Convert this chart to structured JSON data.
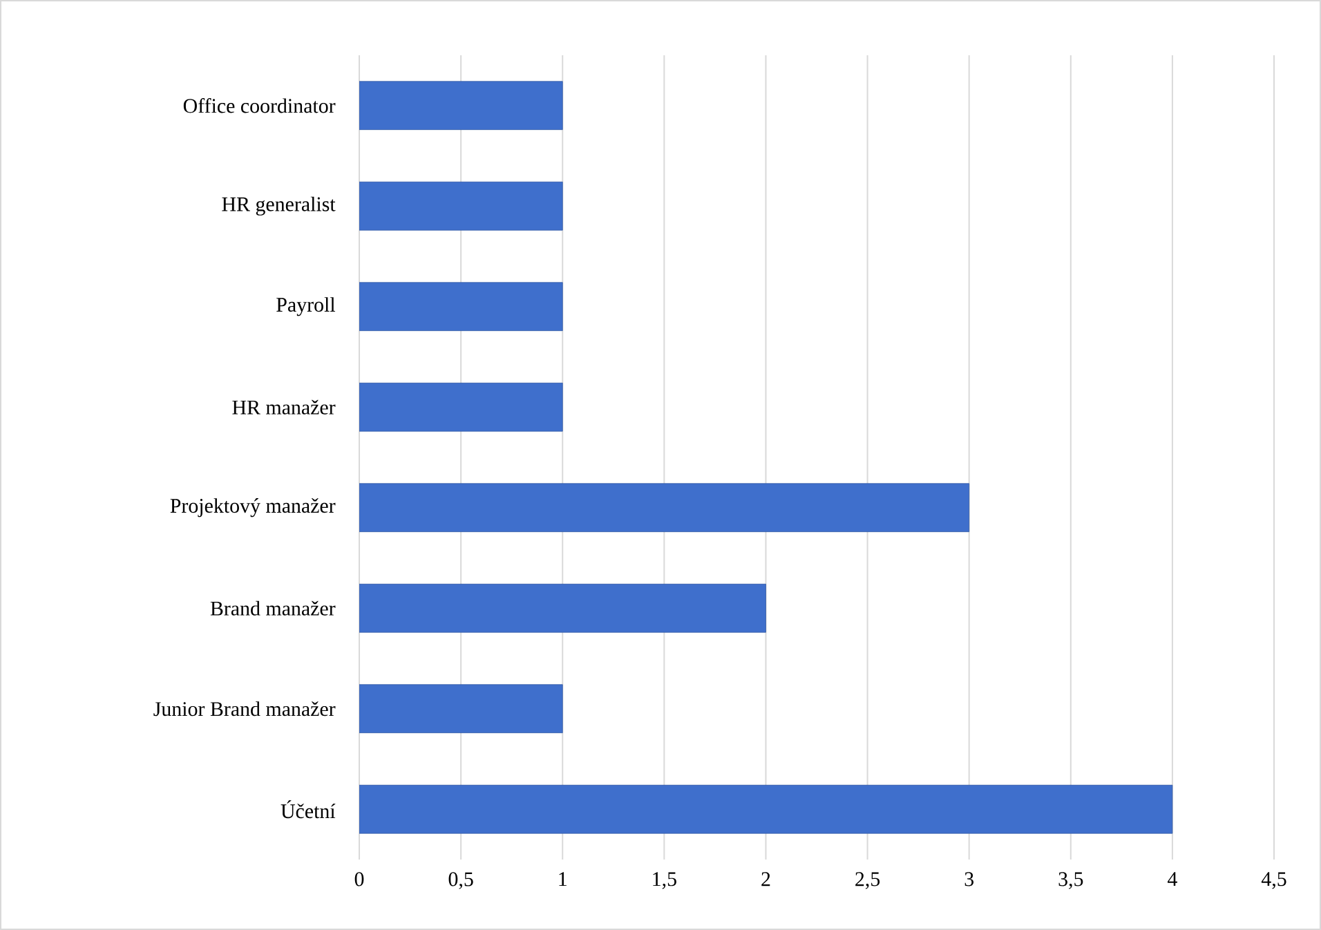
{
  "chart_data": {
    "type": "bar",
    "orientation": "horizontal",
    "categories": [
      "Office coordinator",
      "HR generalist",
      "Payroll",
      "HR manažer",
      "Projektový manažer",
      "Brand manažer",
      "Junior Brand manažer",
      "Účetní"
    ],
    "values": [
      1,
      1,
      1,
      1,
      3,
      2,
      1,
      4
    ],
    "color": "#3f6fcc",
    "xlim": [
      0,
      4.5
    ],
    "xticks": [
      0,
      {
        "value": 0.5,
        "label": "0,5"
      },
      1,
      {
        "value": 1.5,
        "label": "1,5"
      },
      2,
      {
        "value": 2.5,
        "label": "2,5"
      },
      3,
      {
        "value": 3.5,
        "label": "3,5"
      },
      4,
      {
        "value": 4.5,
        "label": "4,5"
      }
    ],
    "grid": "x"
  }
}
